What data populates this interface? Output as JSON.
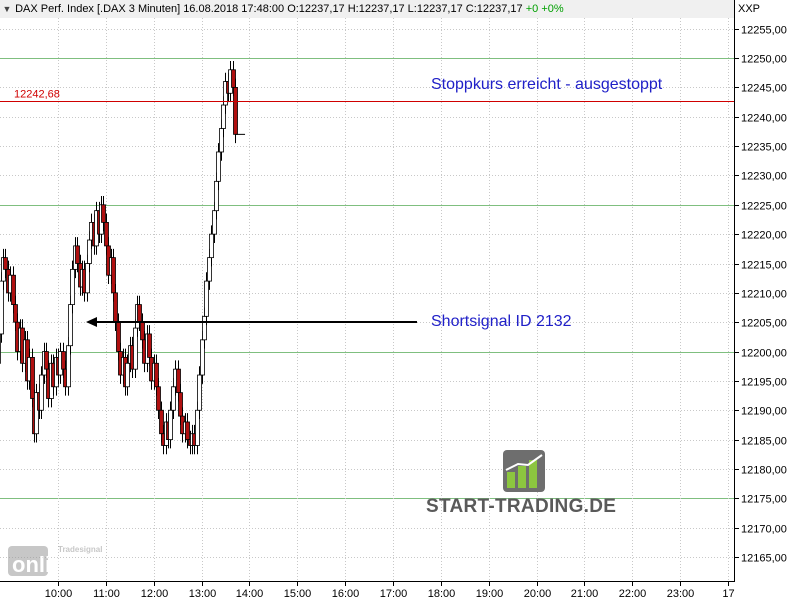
{
  "header": {
    "instrument": "DAX Perf. Index [.DAX  3 Minuten] 16.08.2018 17:48:00",
    "ohlc": "O:12237,17 H:12237,17 L:12237,17 C:12237,17",
    "change": "+0 +0%",
    "collapse_icon": "triangle-down-icon"
  },
  "y_axis": {
    "symbol": "XXP"
  },
  "stop_line": {
    "label": "12242,68",
    "value": 12242.68,
    "color": "#d00000"
  },
  "annotations": {
    "stop_text": "Stoppkurs erreicht - ausgestoppt",
    "signal_text": "Shortsignal ID 2132",
    "signal_value": 12205,
    "color": "#2020c8"
  },
  "watermark": {
    "brand": "START-TRADING.DE",
    "tradesignal": "Tradesignal",
    "online": "online"
  },
  "colors": {
    "up": "#ffffff",
    "down": "#b01010",
    "grid_major": "#7fbf7f",
    "grid_minor": "#c8c8c8",
    "axis_bg": "#ffffff"
  },
  "chart_data": {
    "type": "candlestick",
    "title": "DAX Perf. Index [.DAX  3 Minuten] 16.08.2018 17:48:00",
    "ylim": [
      12160,
      12258
    ],
    "y_ticks": [
      "12165,00",
      "12170,00",
      "12175,00",
      "12180,00",
      "12185,00",
      "12190,00",
      "12195,00",
      "12200,00",
      "12205,00",
      "12210,00",
      "12215,00",
      "12220,00",
      "12225,00",
      "12230,00",
      "12235,00",
      "12240,00",
      "12245,00",
      "12250,00",
      "12255,00"
    ],
    "y_tick_values": [
      12165,
      12170,
      12175,
      12180,
      12185,
      12190,
      12195,
      12200,
      12205,
      12210,
      12215,
      12220,
      12225,
      12230,
      12235,
      12240,
      12245,
      12250,
      12255
    ],
    "major_gridlines": [
      12175,
      12200,
      12225,
      12250
    ],
    "x_ticks": [
      "10:00",
      "11:00",
      "12:00",
      "13:00",
      "14:00",
      "15:00",
      "16:00",
      "17:00",
      "18:00",
      "19:00",
      "20:00",
      "21:00",
      "22:00",
      "23:00",
      "17"
    ],
    "close_series": [
      {
        "t": "09:00",
        "c": 12197
      },
      {
        "t": "09:03",
        "c": 12192
      },
      {
        "t": "09:06",
        "c": 12186
      },
      {
        "t": "09:09",
        "c": 12190
      },
      {
        "t": "09:12",
        "c": 12182
      },
      {
        "t": "09:15",
        "c": 12185
      },
      {
        "t": "09:18",
        "c": 12178
      },
      {
        "t": "09:21",
        "c": 12183
      },
      {
        "t": "09:24",
        "c": 12174
      },
      {
        "t": "09:27",
        "c": 12172
      },
      {
        "t": "09:30",
        "c": 12180
      },
      {
        "t": "09:33",
        "c": 12186
      },
      {
        "t": "09:36",
        "c": 12190
      },
      {
        "t": "09:39",
        "c": 12194
      },
      {
        "t": "09:42",
        "c": 12198
      },
      {
        "t": "09:45",
        "c": 12203
      },
      {
        "t": "09:48",
        "c": 12212
      },
      {
        "t": "09:51",
        "c": 12216
      },
      {
        "t": "09:54",
        "c": 12214
      },
      {
        "t": "09:57",
        "c": 12210
      },
      {
        "t": "10:00",
        "c": 12213
      },
      {
        "t": "10:03",
        "c": 12208
      },
      {
        "t": "10:06",
        "c": 12205
      },
      {
        "t": "10:09",
        "c": 12200
      },
      {
        "t": "10:12",
        "c": 12204
      },
      {
        "t": "10:15",
        "c": 12198
      },
      {
        "t": "10:18",
        "c": 12202
      },
      {
        "t": "10:21",
        "c": 12195
      },
      {
        "t": "10:24",
        "c": 12199
      },
      {
        "t": "10:27",
        "c": 12192
      },
      {
        "t": "10:30",
        "c": 12186
      },
      {
        "t": "10:33",
        "c": 12193
      },
      {
        "t": "10:36",
        "c": 12190
      },
      {
        "t": "10:39",
        "c": 12196
      },
      {
        "t": "10:42",
        "c": 12200
      },
      {
        "t": "10:45",
        "c": 12197
      },
      {
        "t": "10:48",
        "c": 12192
      },
      {
        "t": "10:51",
        "c": 12198
      },
      {
        "t": "10:54",
        "c": 12194
      },
      {
        "t": "10:57",
        "c": 12199
      },
      {
        "t": "11:00",
        "c": 12196
      },
      {
        "t": "11:03",
        "c": 12200
      },
      {
        "t": "11:06",
        "c": 12197
      },
      {
        "t": "11:09",
        "c": 12194
      },
      {
        "t": "11:12",
        "c": 12201
      },
      {
        "t": "11:15",
        "c": 12208
      },
      {
        "t": "11:18",
        "c": 12214
      },
      {
        "t": "11:21",
        "c": 12218
      },
      {
        "t": "11:24",
        "c": 12215
      },
      {
        "t": "11:27",
        "c": 12211
      },
      {
        "t": "11:30",
        "c": 12214
      },
      {
        "t": "11:33",
        "c": 12210
      },
      {
        "t": "11:36",
        "c": 12215
      },
      {
        "t": "11:39",
        "c": 12219
      },
      {
        "t": "11:42",
        "c": 12222
      },
      {
        "t": "11:45",
        "c": 12218
      },
      {
        "t": "11:48",
        "c": 12224
      },
      {
        "t": "11:51",
        "c": 12220
      },
      {
        "t": "11:54",
        "c": 12225
      },
      {
        "t": "11:57",
        "c": 12222
      },
      {
        "t": "12:00",
        "c": 12218
      },
      {
        "t": "12:03",
        "c": 12213
      },
      {
        "t": "12:06",
        "c": 12216
      },
      {
        "t": "12:09",
        "c": 12210
      },
      {
        "t": "12:12",
        "c": 12205
      },
      {
        "t": "12:15",
        "c": 12200
      },
      {
        "t": "12:18",
        "c": 12196
      },
      {
        "t": "12:21",
        "c": 12199
      },
      {
        "t": "12:24",
        "c": 12194
      },
      {
        "t": "12:27",
        "c": 12198
      },
      {
        "t": "12:30",
        "c": 12201
      },
      {
        "t": "12:33",
        "c": 12197
      },
      {
        "t": "12:36",
        "c": 12204
      },
      {
        "t": "12:39",
        "c": 12208
      },
      {
        "t": "12:42",
        "c": 12205
      },
      {
        "t": "12:45",
        "c": 12202
      },
      {
        "t": "12:48",
        "c": 12198
      },
      {
        "t": "12:51",
        "c": 12203
      },
      {
        "t": "12:54",
        "c": 12199
      },
      {
        "t": "12:57",
        "c": 12195
      },
      {
        "t": "13:00",
        "c": 12198
      },
      {
        "t": "13:03",
        "c": 12194
      },
      {
        "t": "13:06",
        "c": 12190
      },
      {
        "t": "13:09",
        "c": 12186
      },
      {
        "t": "13:12",
        "c": 12184
      },
      {
        "t": "13:15",
        "c": 12188
      },
      {
        "t": "13:18",
        "c": 12185
      },
      {
        "t": "13:21",
        "c": 12190
      },
      {
        "t": "13:24",
        "c": 12194
      },
      {
        "t": "13:27",
        "c": 12197
      },
      {
        "t": "13:30",
        "c": 12193
      },
      {
        "t": "13:33",
        "c": 12189
      },
      {
        "t": "13:36",
        "c": 12186
      },
      {
        "t": "13:39",
        "c": 12188
      },
      {
        "t": "13:42",
        "c": 12185
      },
      {
        "t": "13:45",
        "c": 12184
      },
      {
        "t": "13:48",
        "c": 12186
      },
      {
        "t": "13:51",
        "c": 12184
      },
      {
        "t": "13:54",
        "c": 12190
      },
      {
        "t": "13:57",
        "c": 12196
      },
      {
        "t": "14:00",
        "c": 12202
      },
      {
        "t": "14:03",
        "c": 12206
      },
      {
        "t": "14:06",
        "c": 12212
      },
      {
        "t": "14:09",
        "c": 12216
      },
      {
        "t": "14:12",
        "c": 12220
      },
      {
        "t": "14:15",
        "c": 12224
      },
      {
        "t": "14:18",
        "c": 12229
      },
      {
        "t": "14:21",
        "c": 12234
      },
      {
        "t": "14:24",
        "c": 12238
      },
      {
        "t": "14:27",
        "c": 12242
      },
      {
        "t": "14:30",
        "c": 12246
      },
      {
        "t": "14:33",
        "c": 12244
      },
      {
        "t": "14:36",
        "c": 12248
      },
      {
        "t": "14:39",
        "c": 12245
      },
      {
        "t": "14:42",
        "c": 12237
      }
    ]
  }
}
